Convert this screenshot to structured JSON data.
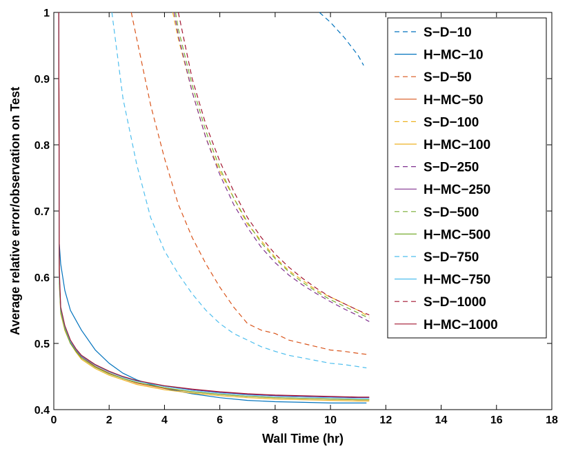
{
  "chart_data": {
    "type": "line",
    "xlabel": "Wall Time (hr)",
    "ylabel": "Average relative error/observation on Test",
    "xlim": [
      0,
      18
    ],
    "ylim": [
      0.4,
      1.0
    ],
    "xticks": [
      "0",
      "2",
      "4",
      "6",
      "8",
      "10",
      "12",
      "14",
      "16",
      "18"
    ],
    "yticks": [
      "0.4",
      "0.5",
      "0.6",
      "0.7",
      "0.8",
      "0.9",
      "1"
    ],
    "legend_position": "top-right",
    "series": [
      {
        "name": "S−D−10",
        "color": "#0072BD",
        "style": "dashed",
        "x": [
          9.6,
          10.0,
          10.5,
          11.0,
          11.2
        ],
        "y": [
          1.0,
          0.985,
          0.962,
          0.935,
          0.92
        ]
      },
      {
        "name": "H−MC−10",
        "color": "#0072BD",
        "style": "solid",
        "x": [
          0.2,
          0.25,
          0.4,
          0.6,
          0.8,
          1.0,
          1.5,
          2.0,
          2.5,
          3.0,
          3.5,
          4.0,
          5.0,
          6.0,
          7.0,
          8.0,
          9.0,
          10.0,
          11.0,
          11.3
        ],
        "y": [
          0.65,
          0.62,
          0.58,
          0.55,
          0.535,
          0.52,
          0.49,
          0.47,
          0.455,
          0.445,
          0.438,
          0.432,
          0.424,
          0.418,
          0.414,
          0.412,
          0.411,
          0.41,
          0.41,
          0.41
        ]
      },
      {
        "name": "S−D−50",
        "color": "#D95319",
        "style": "dashed",
        "x": [
          2.8,
          3.0,
          3.5,
          4.0,
          4.5,
          5.0,
          5.5,
          6.0,
          6.5,
          7.0,
          7.5,
          8.0,
          8.5,
          9.0,
          9.5,
          10.0,
          10.5,
          11.0,
          11.4
        ],
        "y": [
          1.0,
          0.96,
          0.86,
          0.78,
          0.71,
          0.66,
          0.62,
          0.585,
          0.555,
          0.53,
          0.52,
          0.515,
          0.505,
          0.5,
          0.495,
          0.49,
          0.488,
          0.485,
          0.483
        ]
      },
      {
        "name": "H−MC−50",
        "color": "#D95319",
        "style": "solid",
        "x": [
          0.18,
          0.2,
          0.25,
          0.4,
          0.6,
          0.8,
          1.0,
          1.5,
          2.0,
          2.5,
          3.0,
          4.0,
          5.0,
          6.0,
          7.0,
          8.0,
          9.0,
          10.0,
          11.0,
          11.4
        ],
        "y": [
          1.0,
          0.6,
          0.55,
          0.52,
          0.5,
          0.49,
          0.48,
          0.465,
          0.455,
          0.447,
          0.44,
          0.432,
          0.427,
          0.423,
          0.42,
          0.418,
          0.417,
          0.416,
          0.415,
          0.415
        ]
      },
      {
        "name": "S−D−100",
        "color": "#EDB120",
        "style": "dashed",
        "x": [
          4.3,
          4.5,
          5.0,
          5.5,
          6.0,
          6.5,
          7.0,
          7.5,
          8.0,
          8.5,
          9.0,
          9.5,
          10.0,
          10.5,
          11.0,
          11.4
        ],
        "y": [
          1.0,
          0.96,
          0.88,
          0.81,
          0.76,
          0.72,
          0.68,
          0.655,
          0.63,
          0.61,
          0.595,
          0.58,
          0.57,
          0.56,
          0.55,
          0.54
        ]
      },
      {
        "name": "H−MC−100",
        "color": "#EDB120",
        "style": "solid",
        "x": [
          0.18,
          0.2,
          0.25,
          0.4,
          0.6,
          0.8,
          1.0,
          1.5,
          2.0,
          2.5,
          3.0,
          4.0,
          5.0,
          6.0,
          7.0,
          8.0,
          9.0,
          10.0,
          11.0,
          11.4
        ],
        "y": [
          1.0,
          0.59,
          0.545,
          0.52,
          0.5,
          0.487,
          0.476,
          0.462,
          0.452,
          0.445,
          0.438,
          0.43,
          0.425,
          0.421,
          0.418,
          0.416,
          0.415,
          0.414,
          0.413,
          0.413
        ]
      },
      {
        "name": "S−D−250",
        "color": "#7E2F8E",
        "style": "dashed",
        "x": [
          4.35,
          4.5,
          5.0,
          5.5,
          6.0,
          6.5,
          7.0,
          7.5,
          8.0,
          8.5,
          9.0,
          9.5,
          10.0,
          10.5,
          11.0,
          11.4
        ],
        "y": [
          1.0,
          0.965,
          0.88,
          0.81,
          0.755,
          0.71,
          0.675,
          0.645,
          0.622,
          0.603,
          0.588,
          0.575,
          0.563,
          0.552,
          0.542,
          0.533
        ]
      },
      {
        "name": "H−MC−250",
        "color": "#7E2F8E",
        "style": "solid",
        "x": [
          0.18,
          0.2,
          0.25,
          0.4,
          0.6,
          0.8,
          1.0,
          1.5,
          2.0,
          2.5,
          3.0,
          4.0,
          5.0,
          6.0,
          7.0,
          8.0,
          9.0,
          10.0,
          11.0,
          11.4
        ],
        "y": [
          1.0,
          0.6,
          0.55,
          0.525,
          0.502,
          0.49,
          0.48,
          0.467,
          0.457,
          0.449,
          0.443,
          0.435,
          0.43,
          0.426,
          0.423,
          0.421,
          0.42,
          0.419,
          0.418,
          0.418
        ]
      },
      {
        "name": "S−D−500",
        "color": "#77AC30",
        "style": "dashed",
        "x": [
          4.4,
          4.5,
          5.0,
          5.5,
          6.0,
          6.5,
          7.0,
          7.5,
          8.0,
          8.5,
          9.0,
          9.5,
          10.0,
          10.5,
          11.0,
          11.4
        ],
        "y": [
          1.0,
          0.975,
          0.89,
          0.82,
          0.765,
          0.72,
          0.683,
          0.652,
          0.628,
          0.608,
          0.592,
          0.578,
          0.566,
          0.556,
          0.546,
          0.538
        ]
      },
      {
        "name": "H−MC−500",
        "color": "#77AC30",
        "style": "solid",
        "x": [
          0.18,
          0.2,
          0.25,
          0.4,
          0.6,
          0.8,
          1.0,
          1.5,
          2.0,
          2.5,
          3.0,
          4.0,
          5.0,
          6.0,
          7.0,
          8.0,
          9.0,
          10.0,
          11.0,
          11.4
        ],
        "y": [
          1.0,
          0.59,
          0.548,
          0.522,
          0.5,
          0.488,
          0.478,
          0.464,
          0.454,
          0.447,
          0.441,
          0.433,
          0.427,
          0.423,
          0.42,
          0.418,
          0.417,
          0.416,
          0.415,
          0.415
        ]
      },
      {
        "name": "S−D−750",
        "color": "#4DBEEE",
        "style": "dashed",
        "x": [
          2.1,
          2.5,
          3.0,
          3.5,
          4.0,
          4.5,
          5.0,
          5.5,
          6.0,
          6.5,
          7.0,
          7.5,
          8.0,
          8.5,
          9.0,
          9.5,
          10.0,
          10.5,
          11.0,
          11.3
        ],
        "y": [
          1.0,
          0.87,
          0.77,
          0.69,
          0.64,
          0.605,
          0.575,
          0.55,
          0.53,
          0.515,
          0.505,
          0.495,
          0.488,
          0.482,
          0.478,
          0.474,
          0.47,
          0.468,
          0.465,
          0.463
        ]
      },
      {
        "name": "H−MC−750",
        "color": "#4DBEEE",
        "style": "solid",
        "x": [
          0.18,
          0.2,
          0.25,
          0.4,
          0.6,
          0.8,
          1.0,
          1.5,
          2.0,
          2.5,
          3.0,
          4.0,
          5.0,
          6.0,
          7.0,
          8.0,
          9.0,
          10.0,
          11.0,
          11.4
        ],
        "y": [
          1.0,
          0.6,
          0.552,
          0.525,
          0.503,
          0.491,
          0.481,
          0.467,
          0.457,
          0.449,
          0.443,
          0.435,
          0.429,
          0.425,
          0.422,
          0.42,
          0.419,
          0.418,
          0.417,
          0.417
        ]
      },
      {
        "name": "S−D−1000",
        "color": "#A2142F",
        "style": "dashed",
        "x": [
          4.5,
          5.0,
          5.5,
          6.0,
          6.5,
          7.0,
          7.5,
          8.0,
          8.5,
          9.0,
          9.5,
          10.0,
          10.5,
          11.0,
          11.4
        ],
        "y": [
          1.0,
          0.9,
          0.83,
          0.775,
          0.73,
          0.69,
          0.66,
          0.635,
          0.615,
          0.598,
          0.583,
          0.57,
          0.56,
          0.55,
          0.543
        ]
      },
      {
        "name": "H−MC−1000",
        "color": "#A2142F",
        "style": "solid",
        "x": [
          0.18,
          0.2,
          0.25,
          0.4,
          0.6,
          0.8,
          1.0,
          1.5,
          2.0,
          2.5,
          3.0,
          4.0,
          5.0,
          6.0,
          7.0,
          8.0,
          9.0,
          10.0,
          11.0,
          11.4
        ],
        "y": [
          1.0,
          0.61,
          0.555,
          0.527,
          0.505,
          0.492,
          0.482,
          0.468,
          0.458,
          0.45,
          0.444,
          0.436,
          0.431,
          0.427,
          0.424,
          0.422,
          0.421,
          0.42,
          0.419,
          0.419
        ]
      }
    ]
  }
}
